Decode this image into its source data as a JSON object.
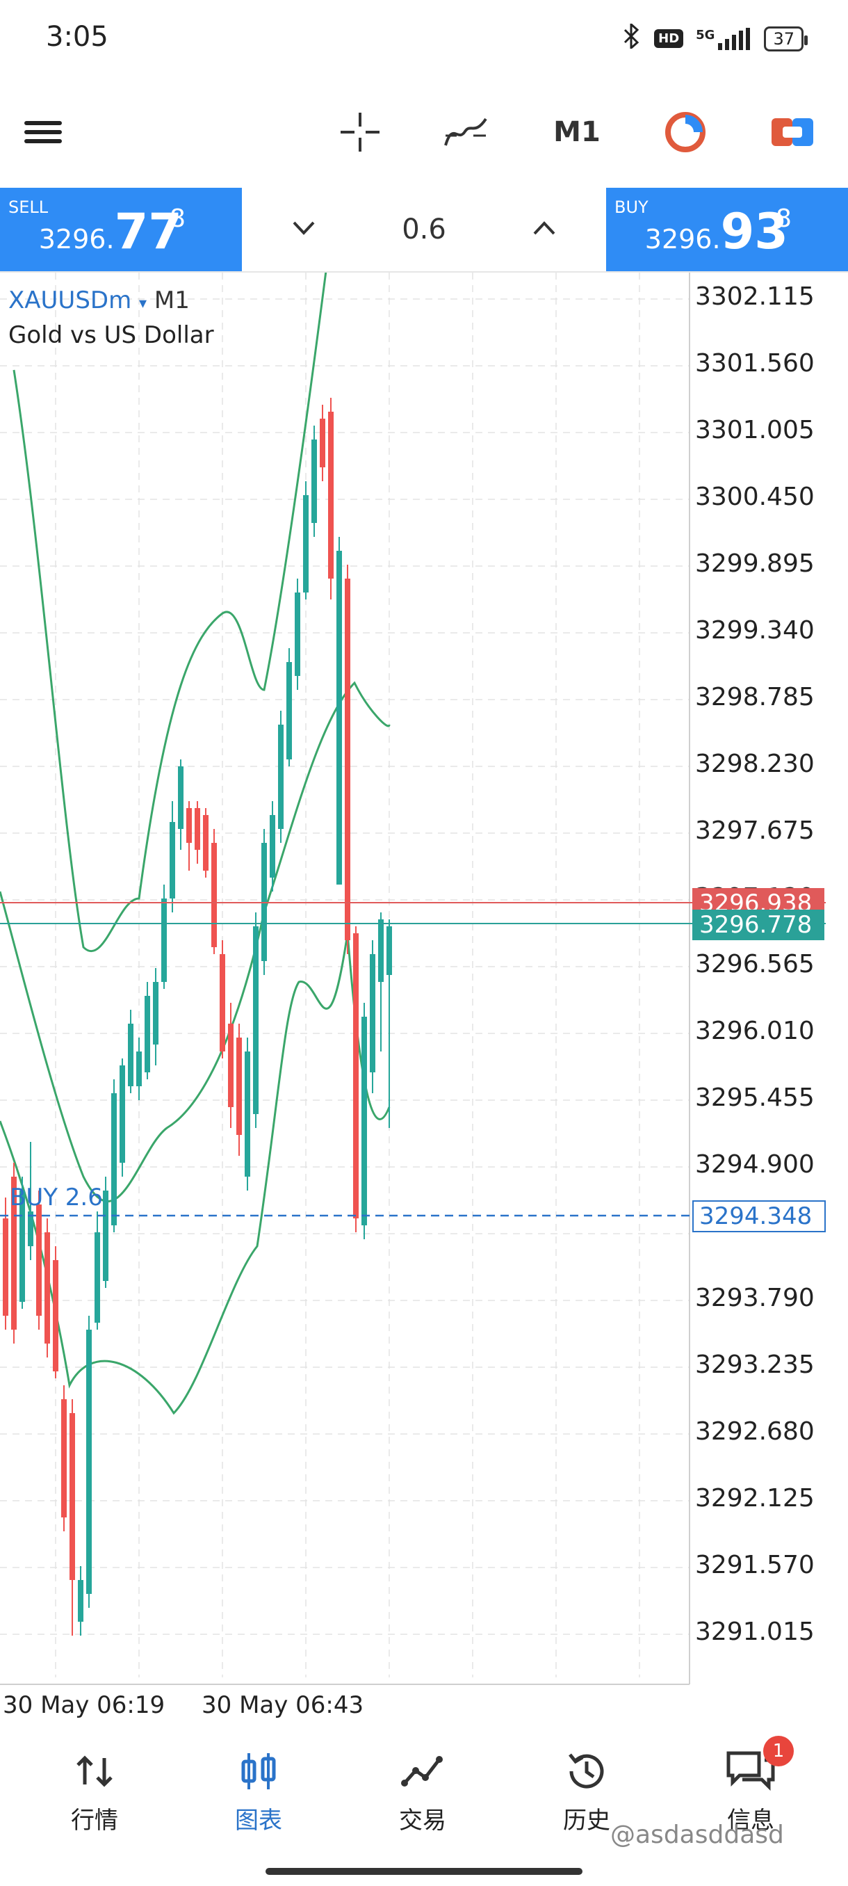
{
  "status_bar": {
    "time": "3:05",
    "hd": "HD",
    "network": "5G",
    "battery": "37"
  },
  "toolbar": {
    "menu_icon": "hamburger-menu-icon",
    "crosshair_icon": "crosshair-icon",
    "indicators_icon": "indicators-icon",
    "timeframe": "M1",
    "objects_icon": "objects-icon",
    "trade_icon": "one-click-trade-icon"
  },
  "trade_bar": {
    "sell_label": "SELL",
    "sell_price_small": "3296.",
    "sell_price_big": "77",
    "sell_price_sup": "8",
    "buy_label": "BUY",
    "buy_price_small": "3296.",
    "buy_price_big": "93",
    "buy_price_sup": "8",
    "lot_value": "0.6"
  },
  "chart": {
    "symbol": "XAUUSDm",
    "symbol_arrow": "▾",
    "timeframe": "M1",
    "description": "Gold vs US Dollar",
    "price_scale": [
      "3302.115",
      "3301.560",
      "3301.005",
      "3300.450",
      "3299.895",
      "3299.340",
      "3298.785",
      "3298.230",
      "3297.675",
      "3297.120",
      "3296.565",
      "3296.010",
      "3295.455",
      "3294.900",
      "3293.790",
      "3293.235",
      "3292.680",
      "3292.125",
      "3291.570",
      "3291.015"
    ],
    "ask_tag": "3296.938",
    "bid_tag": "3296.778",
    "position_tag": "3294.348",
    "position_label": "BUY 2.6",
    "time_labels": [
      "30 May 06:19",
      "30 May 06:43"
    ],
    "colors": {
      "bull": "#26a69a",
      "bear": "#ef5350",
      "bands": "#3aa66a",
      "ask_line": "#e05a5a",
      "bid_line": "#2aa198",
      "position_line": "#2a73c9"
    }
  },
  "bottom_nav": {
    "items": [
      {
        "label": "行情",
        "icon": "quotes-icon"
      },
      {
        "label": "图表",
        "icon": "chart-icon"
      },
      {
        "label": "交易",
        "icon": "trade-icon"
      },
      {
        "label": "历史",
        "icon": "history-icon"
      },
      {
        "label": "信息",
        "icon": "messages-icon"
      }
    ],
    "notification_count": "1",
    "watermark": "@asdasddasd"
  }
}
